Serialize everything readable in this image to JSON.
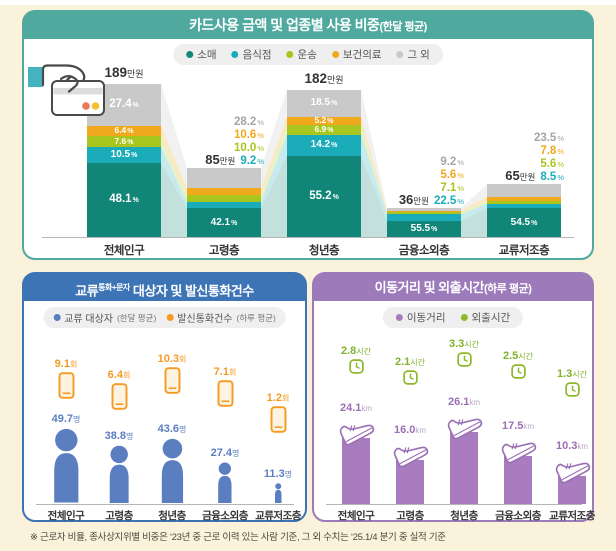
{
  "page": {
    "background": "#FBF2DB",
    "footnote": "※ 근로자 비율, 종사상지위별 비중은 ‘23년 중 근로 이력 있는 사람 기준, 그 외 수치는 ‘25.1/4 분기 중 실적 기준"
  },
  "panels": {
    "cards": {
      "accent": "#4FA99E",
      "title": "카드사용 금액 및 업종별 사용 비중",
      "title_suffix": "(한달 평균)"
    },
    "contacts": {
      "accent": "#3D74B5",
      "title_prefix": "교류",
      "title_sup": "통화+문자",
      "title_rest": " 대상자 및 발신통화건수"
    },
    "mobility": {
      "accent": "#9D7BBA",
      "title": "이동거리 및 외출시간",
      "title_suffix": "(하루 평균)"
    }
  },
  "chart_data": [
    {
      "id": "card_usage",
      "type": "bar",
      "stacked": true,
      "title": "카드사용 금액 및 업종별 사용 비중(한달 평균)",
      "categories": [
        "전체인구",
        "고령층",
        "청년층",
        "금융소외층",
        "교류저조층"
      ],
      "totals": {
        "unit": "만원",
        "values": [
          189,
          85,
          182,
          36,
          65
        ]
      },
      "value_unit": "%",
      "legend_position": "top",
      "inside_label_bars": [
        0,
        2
      ],
      "series": [
        {
          "name": "소매",
          "color": "#108578",
          "label_color": "#108578",
          "values": [
            "48.1",
            "42.1",
            "55.2",
            "55.5",
            "54.5"
          ]
        },
        {
          "name": "음식점",
          "color": "#1BACB9",
          "label_color": "#1BACB9",
          "values": [
            "10.5",
            "9.2",
            "14.2",
            "22.5",
            "8.5"
          ]
        },
        {
          "name": "운송",
          "color": "#A8C61E",
          "label_color": "#A8C61E",
          "values": [
            "7.6",
            "10.0",
            "6.9",
            "7.1",
            "5.6"
          ]
        },
        {
          "name": "보건의료",
          "color": "#F0A81C",
          "label_color": "#F0A81C",
          "values": [
            "6.4",
            "10.6",
            "5.2",
            "5.6",
            "7.8"
          ]
        },
        {
          "name": "그 외",
          "color": "#C9C9C9",
          "label_color": "#A5A5A5",
          "values": [
            "27.4",
            "28.2",
            "18.5",
            "9.2",
            "23.5"
          ]
        }
      ]
    },
    {
      "id": "contacts_calls",
      "type": "pictogram",
      "title": "교류(통화+문자) 대상자 및 발신통화건수",
      "categories": [
        "전체인구",
        "고령층",
        "청년층",
        "금융소외층",
        "교류저조층"
      ],
      "series": [
        {
          "name": "교류 대상자",
          "name_paren": "(한달 평균)",
          "unit": "명",
          "color": "#5B7EC1",
          "icon": "person",
          "values": [
            "49.7",
            "38.8",
            "43.6",
            "27.4",
            "11.3"
          ]
        },
        {
          "name": "발신통화건수",
          "name_paren": "(하루 평균)",
          "unit": "회",
          "color": "#F59A23",
          "icon": "phone",
          "values": [
            "9.1",
            "6.4",
            "10.3",
            "7.1",
            "1.2"
          ]
        }
      ]
    },
    {
      "id": "mobility",
      "type": "bar",
      "title": "이동거리 및 외출시간(하루 평균)",
      "categories": [
        "전체인구",
        "고령층",
        "청년층",
        "금융소외층",
        "교류저조층"
      ],
      "series": [
        {
          "name": "이동거리",
          "name_paren": "",
          "unit": "km",
          "color": "#A87CBF",
          "label_color": "#9B6FB4",
          "icon": "shoe",
          "values": [
            "24.1",
            "16.0",
            "26.1",
            "17.5",
            "10.3"
          ]
        },
        {
          "name": "외출시간",
          "name_paren": "",
          "unit": "시간",
          "color": "#8CB82A",
          "label_color": "#7FB32A",
          "icon": "clock",
          "values": [
            "2.8",
            "2.1",
            "3.3",
            "2.5",
            "1.3"
          ]
        }
      ]
    }
  ]
}
